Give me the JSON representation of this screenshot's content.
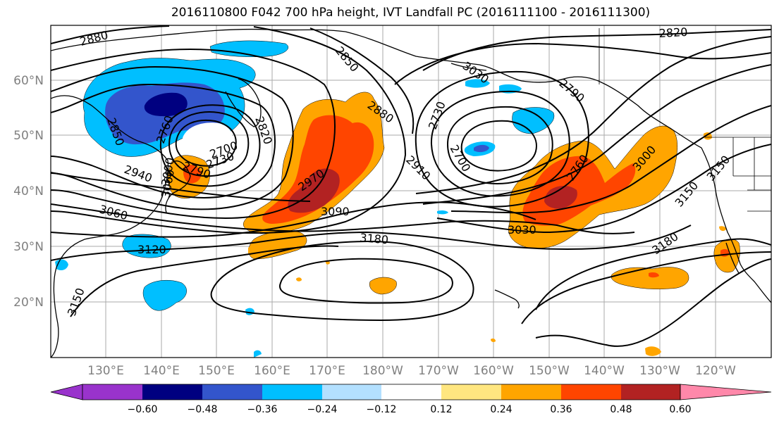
{
  "title": "2016110800 F042 700 hPa height, IVT Landfall PC (2016111100 - 2016111300)",
  "latitude_labels": [
    "60°N",
    "50°N",
    "40°N",
    "30°N",
    "20°N"
  ],
  "longitude_labels": [
    "130°E",
    "140°E",
    "150°E",
    "160°E",
    "170°E",
    "180°W",
    "170°W",
    "160°W",
    "150°W",
    "140°W",
    "130°W",
    "120°W"
  ],
  "contour_labels": [
    "2880",
    "2850",
    "2820",
    "2790",
    "2760",
    "2730",
    "2700",
    "2910",
    "2940",
    "2970",
    "3000",
    "3030",
    "3060",
    "3090",
    "3120",
    "3150",
    "3180",
    "2820",
    "2850",
    "2880",
    "2700",
    "2730",
    "2760",
    "2790",
    "3030",
    "3060",
    "3000",
    "3150",
    "3180",
    "3150"
  ],
  "colorbar": {
    "ticks": [
      "−0.60",
      "−0.48",
      "−0.36",
      "−0.24",
      "−0.12",
      "0.12",
      "0.24",
      "0.36",
      "0.48",
      "0.60"
    ],
    "colors": {
      "below": "#9933cc",
      "bins": [
        "#000080",
        "#3355cc",
        "#00bfff",
        "#b3e0ff",
        "#ffffff",
        "#ffe680",
        "#ffa500",
        "#ff4500",
        "#b22222"
      ],
      "above": "#ff88aa"
    }
  },
  "field_colors": {
    "neg_light": "#00bfff",
    "neg_mid": "#3355cc",
    "neg_dark": "#000080",
    "pos_light": "#ffa500",
    "pos_mid": "#ff4500",
    "pos_dark": "#b22222",
    "pos_faint": "#ffe680"
  }
}
